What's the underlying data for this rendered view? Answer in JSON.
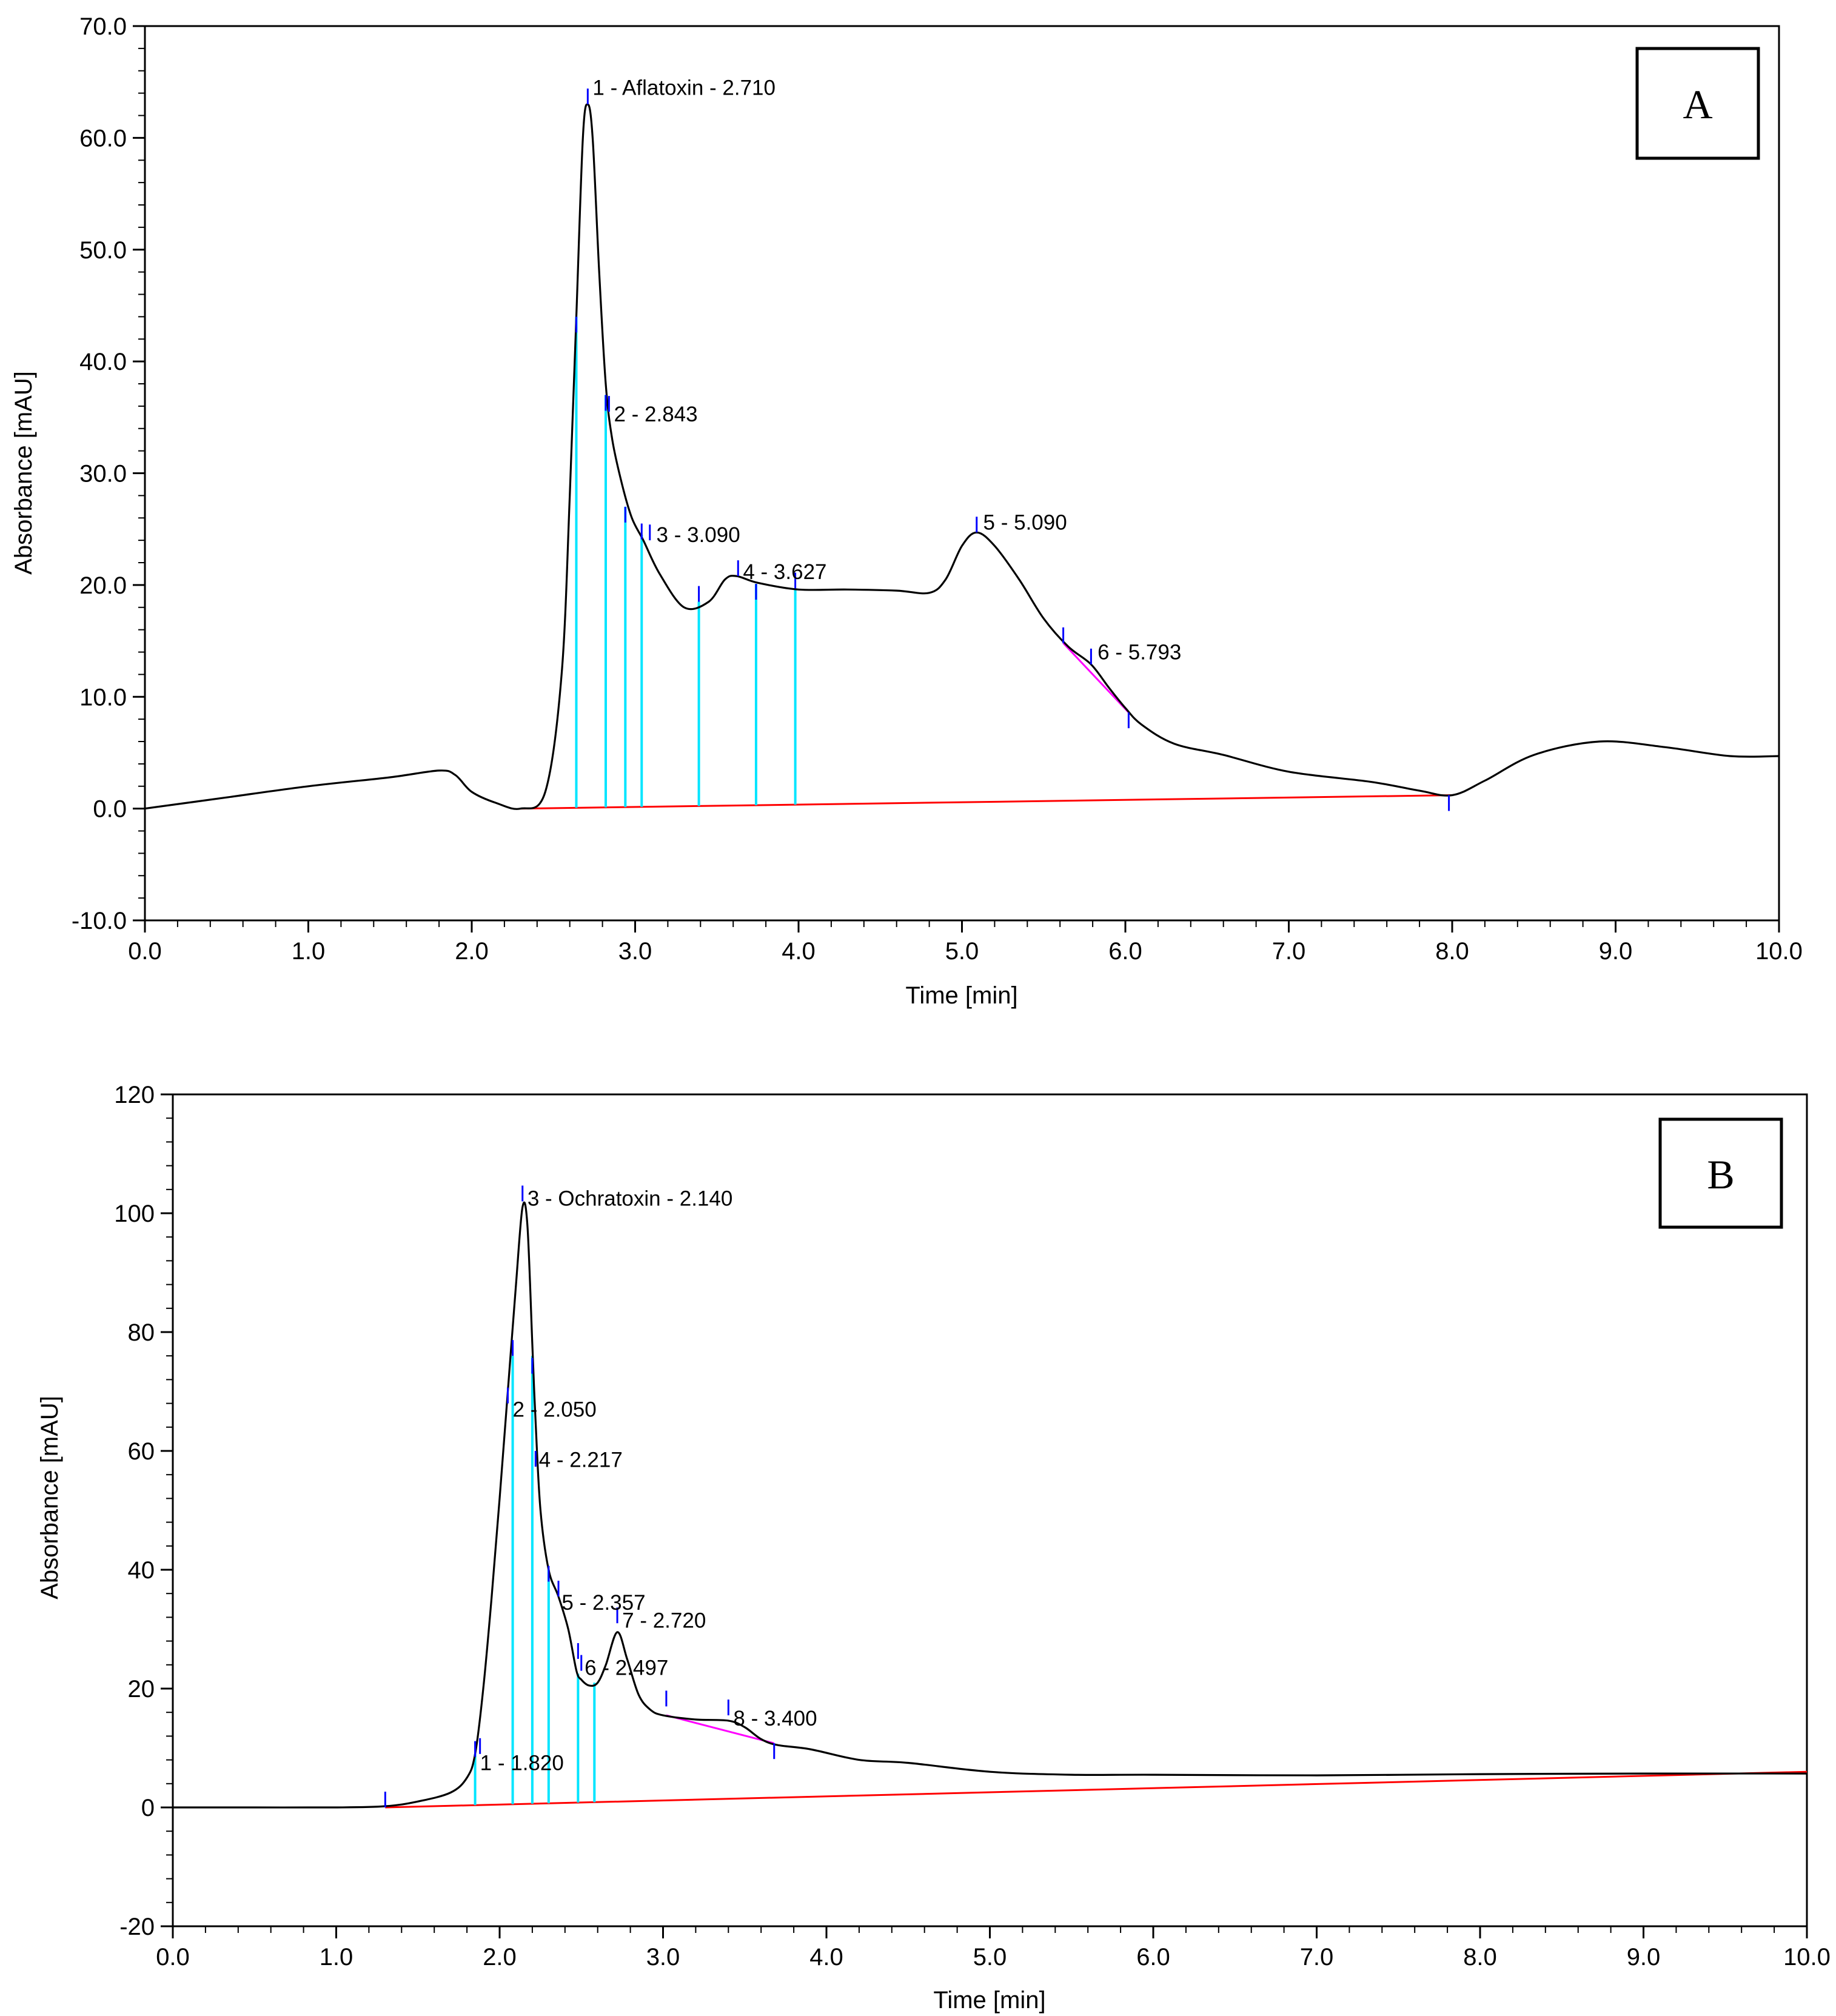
{
  "chart_data": [
    {
      "type": "line",
      "panel": "A",
      "xlabel": "Time [min]",
      "ylabel": "Absorbance [mAU]",
      "xlim": [
        0,
        10
      ],
      "ylim": [
        -10,
        70
      ],
      "xticks": [
        "0.0",
        "1.0",
        "2.0",
        "3.0",
        "4.0",
        "5.0",
        "6.0",
        "7.0",
        "8.0",
        "9.0",
        "10.0"
      ],
      "yticks": [
        "-10.0",
        "0.0",
        "10.0",
        "20.0",
        "30.0",
        "40.0",
        "50.0",
        "60.0",
        "70.0"
      ],
      "colors": {
        "trace": "#000000",
        "baseline": "#ff0000",
        "drop": "#00e5ff",
        "tangent": "#ff00ff",
        "marker": "#0000ff"
      },
      "trace": [
        [
          0,
          0
        ],
        [
          0.5,
          1
        ],
        [
          1.0,
          2
        ],
        [
          1.5,
          2.8
        ],
        [
          1.8,
          3.4
        ],
        [
          1.9,
          3.0
        ],
        [
          2.0,
          1.5
        ],
        [
          2.15,
          0.5
        ],
        [
          2.3,
          0
        ],
        [
          2.45,
          1.5
        ],
        [
          2.55,
          12
        ],
        [
          2.6,
          28
        ],
        [
          2.64,
          44
        ],
        [
          2.68,
          60
        ],
        [
          2.71,
          63
        ],
        [
          2.74,
          60
        ],
        [
          2.78,
          48
        ],
        [
          2.82,
          38
        ],
        [
          2.86,
          33
        ],
        [
          2.92,
          29
        ],
        [
          2.98,
          26
        ],
        [
          3.05,
          24
        ],
        [
          3.15,
          21
        ],
        [
          3.3,
          18
        ],
        [
          3.45,
          18.5
        ],
        [
          3.55,
          20.5
        ],
        [
          3.62,
          20.8
        ],
        [
          3.75,
          20.2
        ],
        [
          4.0,
          19.6
        ],
        [
          4.3,
          19.6
        ],
        [
          4.6,
          19.5
        ],
        [
          4.8,
          19.3
        ],
        [
          4.9,
          20.5
        ],
        [
          5.0,
          23.5
        ],
        [
          5.09,
          24.7
        ],
        [
          5.2,
          23.5
        ],
        [
          5.35,
          20.5
        ],
        [
          5.5,
          17
        ],
        [
          5.65,
          14.5
        ],
        [
          5.79,
          12.9
        ],
        [
          5.9,
          10.8
        ],
        [
          6.0,
          9
        ],
        [
          6.1,
          7.5
        ],
        [
          6.3,
          5.8
        ],
        [
          6.6,
          4.8
        ],
        [
          7.0,
          3.3
        ],
        [
          7.5,
          2.4
        ],
        [
          7.8,
          1.6
        ],
        [
          8.0,
          1.2
        ],
        [
          8.2,
          2.5
        ],
        [
          8.5,
          4.8
        ],
        [
          8.9,
          6.0
        ],
        [
          9.3,
          5.5
        ],
        [
          9.7,
          4.7
        ],
        [
          10.0,
          4.7
        ]
      ],
      "baseline": {
        "from": [
          2.3,
          0
        ],
        "to": [
          8.0,
          1.2
        ]
      },
      "drop_lines": [
        {
          "x": 2.64,
          "y": 44
        },
        {
          "x": 2.82,
          "y": 37
        },
        {
          "x": 2.94,
          "y": 27
        },
        {
          "x": 3.04,
          "y": 24.5
        },
        {
          "x": 3.39,
          "y": 18.5
        },
        {
          "x": 3.74,
          "y": 20.1
        },
        {
          "x": 3.98,
          "y": 19.7
        }
      ],
      "tangent": {
        "from": [
          5.62,
          14.8
        ],
        "to": [
          6.02,
          8.6
        ]
      },
      "markers": [
        {
          "x": 2.64,
          "y": 44,
          "dir": "down"
        },
        {
          "x": 2.71,
          "y": 63,
          "dir": "up"
        },
        {
          "x": 2.82,
          "y": 37,
          "dir": "down"
        },
        {
          "x": 2.84,
          "y": 35.5,
          "dir": "up"
        },
        {
          "x": 2.94,
          "y": 27,
          "dir": "down"
        },
        {
          "x": 3.04,
          "y": 25.5,
          "dir": "down"
        },
        {
          "x": 3.09,
          "y": 24,
          "dir": "up"
        },
        {
          "x": 3.39,
          "y": 18.5,
          "dir": "up"
        },
        {
          "x": 3.63,
          "y": 20.8,
          "dir": "up"
        },
        {
          "x": 3.74,
          "y": 20.1,
          "dir": "down"
        },
        {
          "x": 3.98,
          "y": 19.7,
          "dir": "up"
        },
        {
          "x": 5.09,
          "y": 24.7,
          "dir": "up"
        },
        {
          "x": 5.62,
          "y": 14.8,
          "dir": "up"
        },
        {
          "x": 5.79,
          "y": 12.9,
          "dir": "up"
        },
        {
          "x": 6.02,
          "y": 8.6,
          "dir": "down"
        },
        {
          "x": 7.98,
          "y": 1.2,
          "dir": "down"
        }
      ],
      "peaks": [
        {
          "label": "1 - Aflatoxin  - 2.710",
          "x": 2.74,
          "y": 64.5
        },
        {
          "label": "2 - 2.843",
          "x": 2.87,
          "y": 35.3
        },
        {
          "label": "3 - 3.090",
          "x": 3.13,
          "y": 24.5
        },
        {
          "label": "4 - 3.627",
          "x": 3.66,
          "y": 21.2
        },
        {
          "label": "5 - 5.090",
          "x": 5.13,
          "y": 25.6
        },
        {
          "label": "6 - 5.793",
          "x": 5.83,
          "y": 14.0
        }
      ],
      "tag": "A"
    },
    {
      "type": "line",
      "panel": "B",
      "xlabel": "Time [min]",
      "ylabel": "Absorbance [mAU]",
      "xlim": [
        0,
        10
      ],
      "ylim": [
        -20,
        120
      ],
      "xticks": [
        "0.0",
        "1.0",
        "2.0",
        "3.0",
        "4.0",
        "5.0",
        "6.0",
        "7.0",
        "8.0",
        "9.0",
        "10.0"
      ],
      "yticks": [
        "-20",
        "0",
        "20",
        "40",
        "60",
        "80",
        "100",
        "120"
      ],
      "colors": {
        "trace": "#000000",
        "baseline": "#ff0000",
        "drop": "#00e5ff",
        "tangent": "#ff00ff",
        "marker": "#0000ff"
      },
      "trace": [
        [
          0,
          0
        ],
        [
          0.5,
          0
        ],
        [
          1.0,
          0
        ],
        [
          1.3,
          0.2
        ],
        [
          1.5,
          1
        ],
        [
          1.7,
          2.5
        ],
        [
          1.8,
          5
        ],
        [
          1.85,
          9
        ],
        [
          1.9,
          20
        ],
        [
          1.95,
          35
        ],
        [
          2.0,
          52
        ],
        [
          2.05,
          70
        ],
        [
          2.1,
          88
        ],
        [
          2.14,
          101
        ],
        [
          2.17,
          98
        ],
        [
          2.2,
          78
        ],
        [
          2.22,
          65
        ],
        [
          2.25,
          50
        ],
        [
          2.3,
          40
        ],
        [
          2.36,
          35.5
        ],
        [
          2.42,
          30
        ],
        [
          2.47,
          23
        ],
        [
          2.5,
          21.5
        ],
        [
          2.55,
          20.5
        ],
        [
          2.6,
          21
        ],
        [
          2.65,
          24
        ],
        [
          2.72,
          29.5
        ],
        [
          2.78,
          25
        ],
        [
          2.85,
          19
        ],
        [
          2.92,
          16.5
        ],
        [
          3.0,
          15.5
        ],
        [
          3.2,
          14.8
        ],
        [
          3.4,
          14.6
        ],
        [
          3.5,
          13.5
        ],
        [
          3.6,
          11.5
        ],
        [
          3.7,
          10.5
        ],
        [
          3.9,
          9.8
        ],
        [
          4.2,
          8
        ],
        [
          4.5,
          7.5
        ],
        [
          5.0,
          6
        ],
        [
          5.5,
          5.5
        ],
        [
          6.0,
          5.5
        ],
        [
          7.0,
          5.4
        ],
        [
          8.0,
          5.6
        ],
        [
          9.0,
          5.7
        ],
        [
          10.0,
          5.7
        ]
      ],
      "baseline": {
        "from": [
          1.3,
          0
        ],
        "to": [
          10.0,
          6
        ]
      },
      "drop_lines": [
        {
          "x": 1.85,
          "y": 9
        },
        {
          "x": 2.08,
          "y": 76
        },
        {
          "x": 2.2,
          "y": 76
        },
        {
          "x": 2.3,
          "y": 40
        },
        {
          "x": 2.48,
          "y": 22.5
        },
        {
          "x": 2.58,
          "y": 21
        }
      ],
      "tangent": {
        "from": [
          3.02,
          15.5
        ],
        "to": [
          3.68,
          10.8
        ]
      },
      "markers": [
        {
          "x": 1.3,
          "y": 0,
          "dir": "up"
        },
        {
          "x": 1.85,
          "y": 8.5,
          "dir": "up"
        },
        {
          "x": 1.88,
          "y": 9,
          "dir": "up"
        },
        {
          "x": 2.08,
          "y": 76,
          "dir": "up"
        },
        {
          "x": 2.05,
          "y": 68,
          "dir": "up"
        },
        {
          "x": 2.14,
          "y": 102,
          "dir": "up"
        },
        {
          "x": 2.2,
          "y": 73,
          "dir": "up"
        },
        {
          "x": 2.22,
          "y": 60,
          "dir": "down"
        },
        {
          "x": 2.3,
          "y": 38,
          "dir": "up"
        },
        {
          "x": 2.36,
          "y": 35.5,
          "dir": "up"
        },
        {
          "x": 2.48,
          "y": 25,
          "dir": "up"
        },
        {
          "x": 2.5,
          "y": 23,
          "dir": "up"
        },
        {
          "x": 2.72,
          "y": 31,
          "dir": "up"
        },
        {
          "x": 3.02,
          "y": 17,
          "dir": "up"
        },
        {
          "x": 3.4,
          "y": 15.5,
          "dir": "up"
        },
        {
          "x": 3.68,
          "y": 10.8,
          "dir": "down"
        }
      ],
      "peaks": [
        {
          "label": "3 - Ochratoxin - 2.140",
          "x": 2.17,
          "y": 102.5
        },
        {
          "label": "2 - 2.050",
          "x": 2.08,
          "y": 67
        },
        {
          "label": "4 - 2.217",
          "x": 2.24,
          "y": 58.5
        },
        {
          "label": "5 - 2.357",
          "x": 2.38,
          "y": 34.5
        },
        {
          "label": "6 - 2.497",
          "x": 2.52,
          "y": 23.5
        },
        {
          "label": "7 - 2.720",
          "x": 2.75,
          "y": 31.5
        },
        {
          "label": "8 - 3.400",
          "x": 3.43,
          "y": 15.0
        },
        {
          "label": "1 - 1.820",
          "x": 1.88,
          "y": 7.5
        }
      ],
      "tag": "B"
    }
  ]
}
